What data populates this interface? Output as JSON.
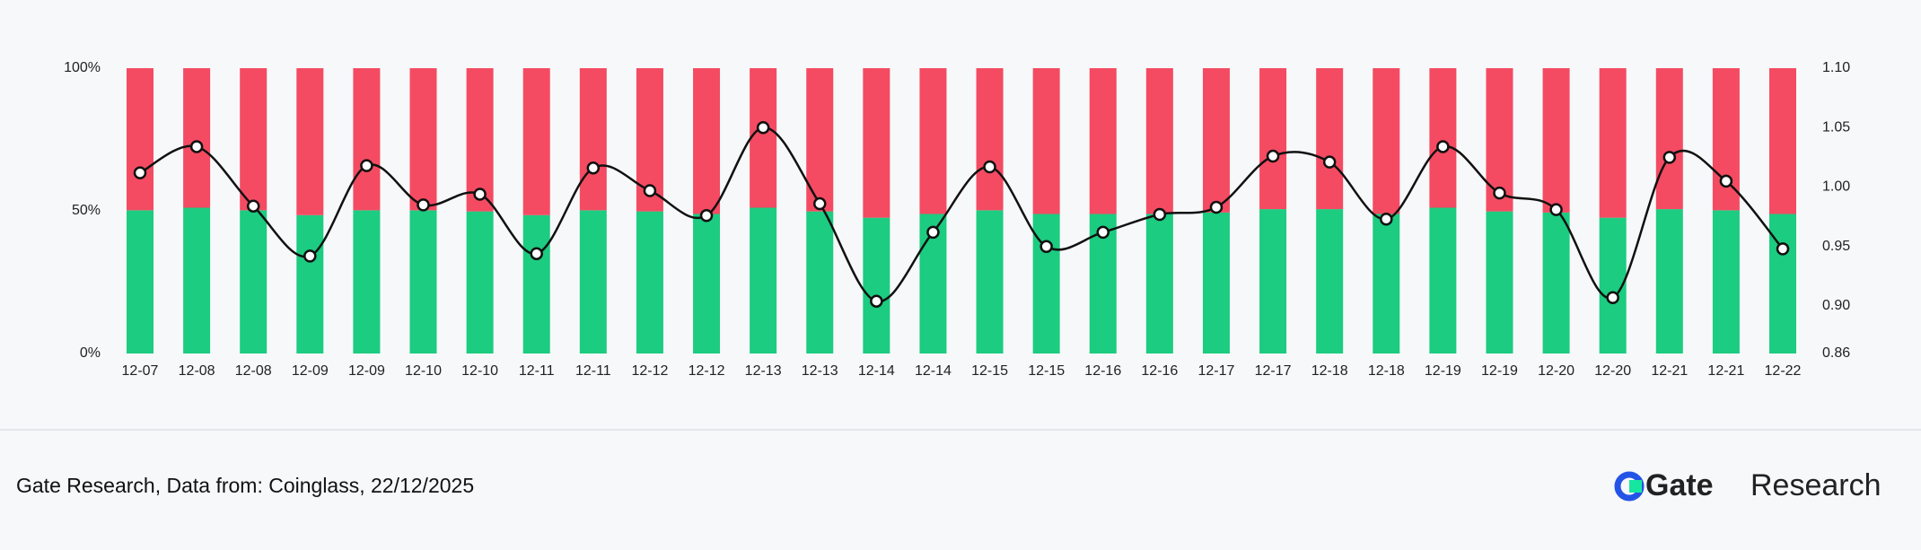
{
  "chart_data": {
    "type": "bar",
    "categories": [
      "12-07",
      "12-08",
      "12-08",
      "12-09",
      "12-09",
      "12-10",
      "12-10",
      "12-11",
      "12-11",
      "12-12",
      "12-12",
      "12-13",
      "12-13",
      "12-14",
      "12-14",
      "12-15",
      "12-15",
      "12-16",
      "12-16",
      "12-17",
      "12-17",
      "12-18",
      "12-18",
      "12-19",
      "12-19",
      "12-20",
      "12-20",
      "12-21",
      "12-21",
      "12-22"
    ],
    "stacked": true,
    "series": [
      {
        "color": "#1ccc80",
        "values": [
          50.2,
          51.1,
          50.2,
          48.5,
          50.2,
          50.2,
          49.8,
          48.5,
          50.2,
          49.8,
          48.9,
          51.1,
          49.8,
          47.6,
          48.9,
          50.2,
          48.9,
          48.9,
          48.9,
          49.4,
          50.6,
          50.6,
          48.9,
          51.1,
          49.8,
          49.4,
          47.6,
          50.6,
          50.2,
          48.9
        ]
      },
      {
        "color": "#f44b62",
        "values": [
          49.8,
          48.9,
          49.8,
          51.5,
          49.8,
          49.8,
          50.2,
          51.5,
          49.8,
          50.2,
          51.1,
          48.9,
          50.2,
          52.4,
          51.1,
          49.8,
          51.1,
          51.1,
          51.1,
          50.6,
          49.4,
          49.4,
          51.1,
          48.9,
          50.2,
          50.6,
          52.4,
          49.4,
          49.8,
          51.1
        ]
      },
      {
        "type": "line",
        "axis": "y2",
        "color": "#111111",
        "values": [
          1.012,
          1.034,
          0.984,
          0.942,
          1.018,
          0.985,
          0.994,
          0.944,
          1.016,
          0.997,
          0.976,
          1.05,
          0.986,
          0.904,
          0.962,
          1.017,
          0.95,
          0.962,
          0.977,
          0.983,
          1.026,
          1.021,
          0.973,
          1.034,
          0.995,
          0.981,
          0.907,
          1.025,
          1.005,
          0.948
        ]
      }
    ],
    "ylim": [
      0,
      100
    ],
    "yticks": [
      {
        "value": 0,
        "label": "0%"
      },
      {
        "value": 50,
        "label": "50%"
      },
      {
        "value": 100,
        "label": "100%"
      }
    ],
    "y2lim": [
      0.86,
      1.1
    ],
    "y2ticks": [
      0.86,
      {
        "value": 0.9,
        "label": "0.90"
      },
      0.95,
      {
        "value": 1.0,
        "label": "1.00"
      },
      1.05,
      {
        "value": 1.1,
        "label": "1.10"
      }
    ]
  },
  "footer": {
    "source": "Gate Research, Data from: Coinglass, 22/12/2025",
    "logo_brand": "Gate",
    "logo_text": "Research"
  }
}
